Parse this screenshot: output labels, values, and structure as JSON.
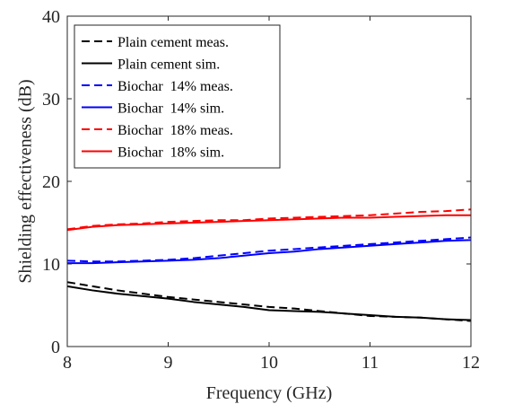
{
  "chart_data": {
    "type": "line",
    "title": "",
    "xlabel": "Frequency (GHz)",
    "ylabel": "Shielding effectiveness (dB)",
    "xlim": [
      8,
      12
    ],
    "ylim": [
      0,
      40
    ],
    "xticks": [
      "8",
      "9",
      "10",
      "11",
      "12"
    ],
    "yticks": [
      "0",
      "10",
      "20",
      "30",
      "40"
    ],
    "grid": false,
    "legend_position": "top-left",
    "series": [
      {
        "name": "Plain cement meas.",
        "color": "#000000",
        "dash": "dashed",
        "x": [
          8.0,
          8.25,
          8.5,
          8.75,
          9.0,
          9.25,
          9.5,
          9.75,
          10.0,
          10.25,
          10.5,
          10.75,
          11.0,
          11.25,
          11.5,
          11.75,
          12.0
        ],
        "y": [
          7.8,
          7.3,
          6.8,
          6.4,
          6.0,
          5.7,
          5.4,
          5.1,
          4.8,
          4.6,
          4.3,
          4.0,
          3.7,
          3.6,
          3.5,
          3.3,
          3.1
        ]
      },
      {
        "name": "Plain cement sim.",
        "color": "#000000",
        "dash": "solid",
        "x": [
          8.0,
          8.25,
          8.5,
          8.75,
          9.0,
          9.25,
          9.5,
          9.75,
          10.0,
          10.25,
          10.5,
          10.75,
          11.0,
          11.25,
          11.5,
          11.75,
          12.0
        ],
        "y": [
          7.3,
          6.8,
          6.4,
          6.1,
          5.8,
          5.4,
          5.1,
          4.8,
          4.4,
          4.3,
          4.2,
          4.0,
          3.8,
          3.6,
          3.5,
          3.3,
          3.2
        ]
      },
      {
        "name": "Biochar  14% meas.",
        "color": "#0000ff",
        "dash": "dashed",
        "x": [
          8.0,
          8.25,
          8.5,
          8.75,
          9.0,
          9.25,
          9.5,
          9.75,
          10.0,
          10.25,
          10.5,
          10.75,
          11.0,
          11.25,
          11.5,
          11.75,
          12.0
        ],
        "y": [
          10.4,
          10.3,
          10.3,
          10.4,
          10.5,
          10.7,
          11.0,
          11.3,
          11.6,
          11.8,
          12.0,
          12.2,
          12.4,
          12.6,
          12.8,
          13.0,
          13.2
        ]
      },
      {
        "name": "Biochar  14% sim.",
        "color": "#0000ff",
        "dash": "solid",
        "x": [
          8.0,
          8.25,
          8.5,
          8.75,
          9.0,
          9.25,
          9.5,
          9.75,
          10.0,
          10.25,
          10.5,
          10.75,
          11.0,
          11.25,
          11.5,
          11.75,
          12.0
        ],
        "y": [
          10.1,
          10.1,
          10.2,
          10.3,
          10.4,
          10.5,
          10.7,
          11.0,
          11.3,
          11.5,
          11.8,
          12.0,
          12.2,
          12.4,
          12.6,
          12.8,
          12.9
        ]
      },
      {
        "name": "Biochar  18% meas.",
        "color": "#ff0000",
        "dash": "dashed",
        "x": [
          8.0,
          8.25,
          8.5,
          8.75,
          9.0,
          9.25,
          9.5,
          9.75,
          10.0,
          10.25,
          10.5,
          10.75,
          11.0,
          11.25,
          11.5,
          11.75,
          12.0
        ],
        "y": [
          14.2,
          14.6,
          14.8,
          14.9,
          15.1,
          15.2,
          15.3,
          15.3,
          15.5,
          15.6,
          15.7,
          15.8,
          15.9,
          16.1,
          16.3,
          16.4,
          16.6
        ]
      },
      {
        "name": "Biochar  18% sim.",
        "color": "#ff0000",
        "dash": "solid",
        "x": [
          8.0,
          8.25,
          8.5,
          8.75,
          9.0,
          9.25,
          9.5,
          9.75,
          10.0,
          10.25,
          10.5,
          10.75,
          11.0,
          11.25,
          11.5,
          11.75,
          12.0
        ],
        "y": [
          14.1,
          14.5,
          14.7,
          14.8,
          14.9,
          15.0,
          15.1,
          15.2,
          15.3,
          15.4,
          15.5,
          15.6,
          15.6,
          15.7,
          15.8,
          15.9,
          15.9
        ]
      }
    ]
  }
}
